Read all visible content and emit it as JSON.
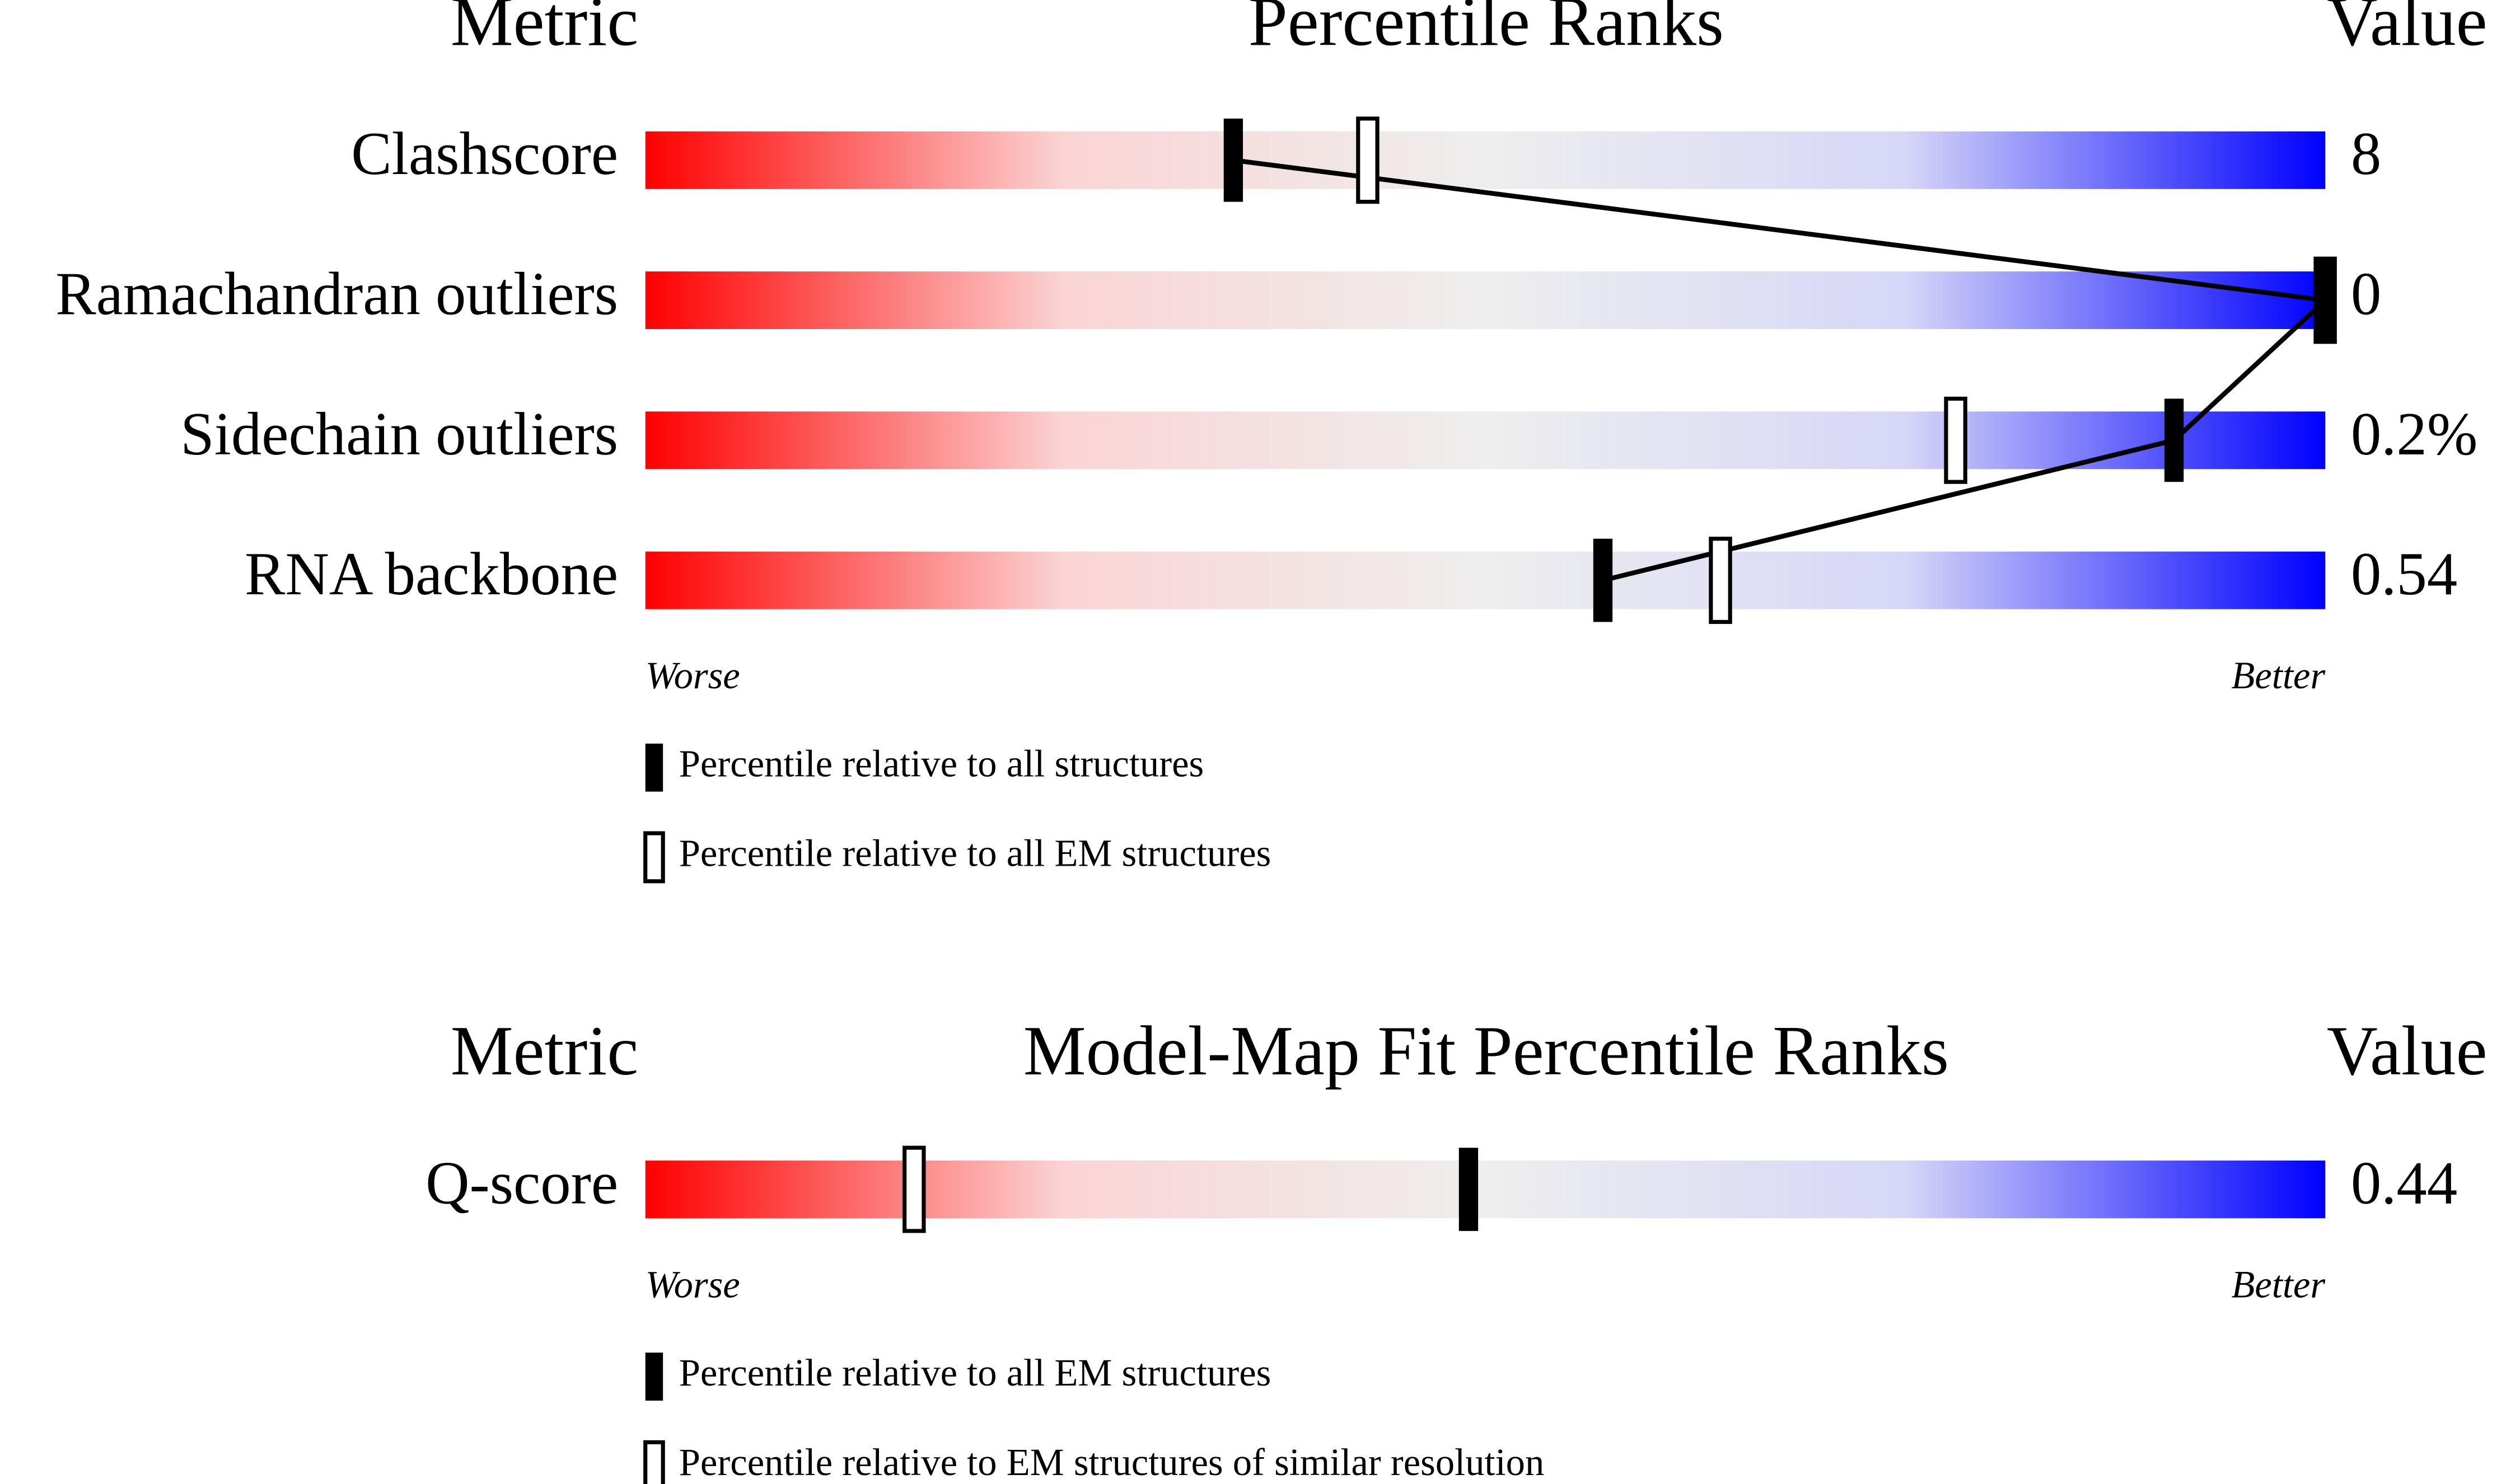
{
  "chart_data": [
    {
      "type": "percentile-slider",
      "metric_header": "Metric",
      "title": "Percentile Ranks",
      "value_header": "Value",
      "categories": [
        "Clashscore",
        "Ramachandran outliers",
        "Sidechain outliers",
        "RNA backbone"
      ],
      "value_labels": [
        "8",
        "0",
        "0.2%",
        "0.54"
      ],
      "xlim": [
        0,
        100
      ],
      "series": [
        {
          "name": "Percentile relative to all structures",
          "marker": "filled",
          "color": "#000000",
          "values": [
            35,
            100,
            91,
            57
          ]
        },
        {
          "name": "Percentile relative to all EM structures",
          "marker": "open",
          "color": "#000000",
          "values": [
            43,
            100,
            78,
            64
          ]
        }
      ],
      "connect_filled": true,
      "worse_label": "Worse",
      "better_label": "Better",
      "gradient": [
        "#ff0000",
        "#fbd4d4",
        "#eeeeee",
        "#d6d6f8",
        "#0000ff"
      ]
    },
    {
      "type": "percentile-slider",
      "metric_header": "Metric",
      "title": "Model-Map Fit Percentile Ranks",
      "value_header": "Value",
      "categories": [
        "Q-score"
      ],
      "value_labels": [
        "0.44"
      ],
      "xlim": [
        0,
        100
      ],
      "series": [
        {
          "name": "Percentile relative to all EM structures",
          "marker": "filled",
          "color": "#000000",
          "values": [
            49
          ]
        },
        {
          "name": "Percentile relative to EM structures of similar resolution",
          "marker": "open",
          "color": "#000000",
          "values": [
            16
          ]
        }
      ],
      "connect_filled": false,
      "worse_label": "Worse",
      "better_label": "Better",
      "gradient": [
        "#ff0000",
        "#fbd4d4",
        "#eeeeee",
        "#d6d6f8",
        "#0000ff"
      ]
    }
  ]
}
